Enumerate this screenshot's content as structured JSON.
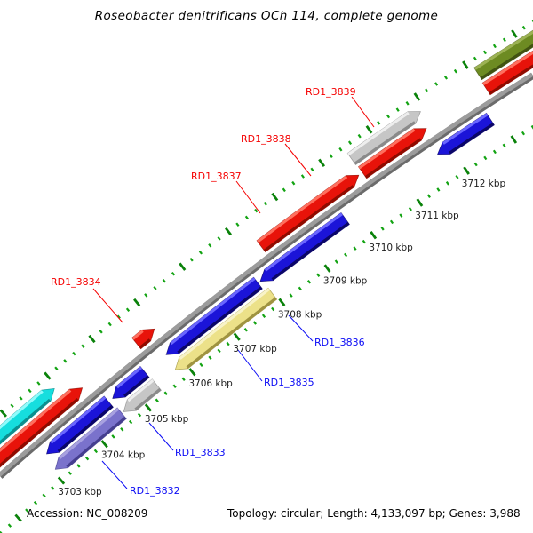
{
  "title": "Roseobacter denitrificans OCh 114, complete genome",
  "footer": {
    "accession": "Accession: NC_008209",
    "summary": "Topology: circular; Length: 4,133,097 bp; Genes: 3,988"
  },
  "palette": {
    "red": {
      "main": "#e8130a",
      "light": "#ff6f5e",
      "dark": "#8f0b00"
    },
    "blue": {
      "main": "#1b14d8",
      "light": "#6a66ff",
      "dark": "#0b0668"
    },
    "cyan": {
      "main": "#16dede",
      "light": "#90fbfb",
      "dark": "#0b8f8f"
    },
    "khaki": {
      "main": "#ece189",
      "light": "#f8f3c8",
      "dark": "#9f9340"
    },
    "purple": {
      "main": "#7a72cc",
      "light": "#a8a1e0",
      "dark": "#453e8f"
    },
    "silver": {
      "main": "#c6c6c6",
      "light": "#eeeeee",
      "dark": "#8a8a8a"
    },
    "olive": {
      "main": "#6d8b22",
      "light": "#9cb254",
      "dark": "#415312"
    },
    "backbone": {
      "main": "#9c9c9c",
      "dark": "#6b6b6b"
    },
    "tick_major": "#0a820a",
    "tick_minor": "#12a312",
    "label_red": "#f50000",
    "label_blue": "#0b0bf5",
    "ruler_text": "#1c1c1c"
  },
  "ruler": {
    "unit": "kbp",
    "minor_step_kbp": 0.2,
    "labels": [
      {
        "kbp": 3703,
        "text": "3703 kbp"
      },
      {
        "kbp": 3704,
        "text": "3704 kbp"
      },
      {
        "kbp": 3705,
        "text": "3705 kbp"
      },
      {
        "kbp": 3706,
        "text": "3706 kbp"
      },
      {
        "kbp": 3707,
        "text": "3707 kbp"
      },
      {
        "kbp": 3708,
        "text": "3708 kbp"
      },
      {
        "kbp": 3709,
        "text": "3709 kbp"
      },
      {
        "kbp": 3710,
        "text": "3710 kbp"
      },
      {
        "kbp": 3711,
        "text": "3711 kbp"
      },
      {
        "kbp": 3712,
        "text": "3712 kbp"
      }
    ]
  },
  "genes": [
    {
      "id": "gene-cyan",
      "color": "cyan",
      "strand": "+",
      "start": 3702.2,
      "end": 3703.95,
      "tier": 2
    },
    {
      "id": "gene-red-a",
      "color": "red",
      "strand": "+",
      "start": 3702.0,
      "end": 3704.33,
      "tier": 1
    },
    {
      "id": "rd1-3832",
      "color": "purple",
      "strand": "-",
      "start": 3703.05,
      "end": 3704.58,
      "tier": 2
    },
    {
      "id": "gene-blue-a",
      "color": "blue",
      "strand": "-",
      "start": 3703.11,
      "end": 3704.53,
      "tier": 1
    },
    {
      "id": "rd1-3833",
      "color": "silver",
      "strand": "-",
      "start": 3704.62,
      "end": 3705.37,
      "tier": 2
    },
    {
      "id": "gene-blue-b",
      "color": "blue",
      "strand": "-",
      "start": 3704.62,
      "end": 3705.35,
      "tier": 1
    },
    {
      "id": "rd1-3834",
      "color": "red",
      "strand": "+",
      "start": 3705.55,
      "end": 3705.95,
      "tier": 1
    },
    {
      "id": "rd1-3835",
      "color": "khaki",
      "strand": "-",
      "start": 3705.79,
      "end": 3707.96,
      "tier": 2
    },
    {
      "id": "gene-blue-c",
      "color": "blue",
      "strand": "-",
      "start": 3705.83,
      "end": 3707.87,
      "tier": 1
    },
    {
      "id": "rd1-3836",
      "color": "blue",
      "strand": "-",
      "start": 3707.92,
      "end": 3709.77,
      "tier": 1
    },
    {
      "id": "rd1-3837",
      "color": "red",
      "strand": "+",
      "start": 3708.3,
      "end": 3710.4,
      "tier": 1
    },
    {
      "id": "rd1-3839",
      "color": "silver",
      "strand": "+",
      "start": 3710.46,
      "end": 3711.91,
      "tier": 2
    },
    {
      "id": "rd1-3838",
      "color": "red",
      "strand": "+",
      "start": 3710.48,
      "end": 3711.83,
      "tier": 1
    },
    {
      "id": "gene-blue-d",
      "color": "blue",
      "strand": "-",
      "start": 3711.74,
      "end": 3712.85,
      "tier": 1
    },
    {
      "id": "gene-olive",
      "color": "olive",
      "strand": "+",
      "start": 3713.1,
      "end": 3714.7,
      "tier": 2
    },
    {
      "id": "gene-red-b",
      "color": "red",
      "strand": "+",
      "start": 3713.08,
      "end": 3714.8,
      "tier": 1
    }
  ],
  "gene_labels": [
    {
      "text": "RD1_3832",
      "color": "blue"
    },
    {
      "text": "RD1_3833",
      "color": "blue"
    },
    {
      "text": "RD1_3834",
      "color": "red"
    },
    {
      "text": "RD1_3835",
      "color": "blue"
    },
    {
      "text": "RD1_3836",
      "color": "blue"
    },
    {
      "text": "RD1_3837",
      "color": "red"
    },
    {
      "text": "RD1_3838",
      "color": "red"
    },
    {
      "text": "RD1_3839",
      "color": "red"
    }
  ]
}
